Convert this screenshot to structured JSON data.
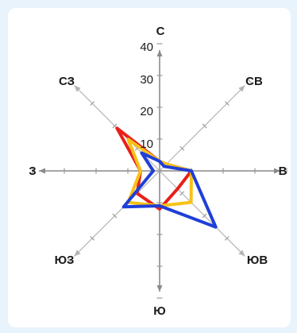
{
  "chart_data": {
    "type": "radar",
    "title": "",
    "directions": [
      "С",
      "СВ",
      "В",
      "ЮВ",
      "Ю",
      "ЮЗ",
      "З",
      "СЗ"
    ],
    "radial_ticks": [
      "40",
      "30",
      "20",
      "10"
    ],
    "rlim": [
      0,
      40
    ],
    "grid": false,
    "legend": "none",
    "series": [
      {
        "color": "#e8201a",
        "values": [
          3,
          3,
          10,
          8,
          12,
          10,
          6,
          19
        ]
      },
      {
        "color": "#f7c218",
        "values": [
          3,
          3,
          10,
          14,
          11,
          14,
          6,
          14
        ]
      },
      {
        "color": "#1f3fd8",
        "values": [
          3,
          2,
          10,
          25,
          11,
          16,
          2,
          8
        ]
      }
    ]
  }
}
